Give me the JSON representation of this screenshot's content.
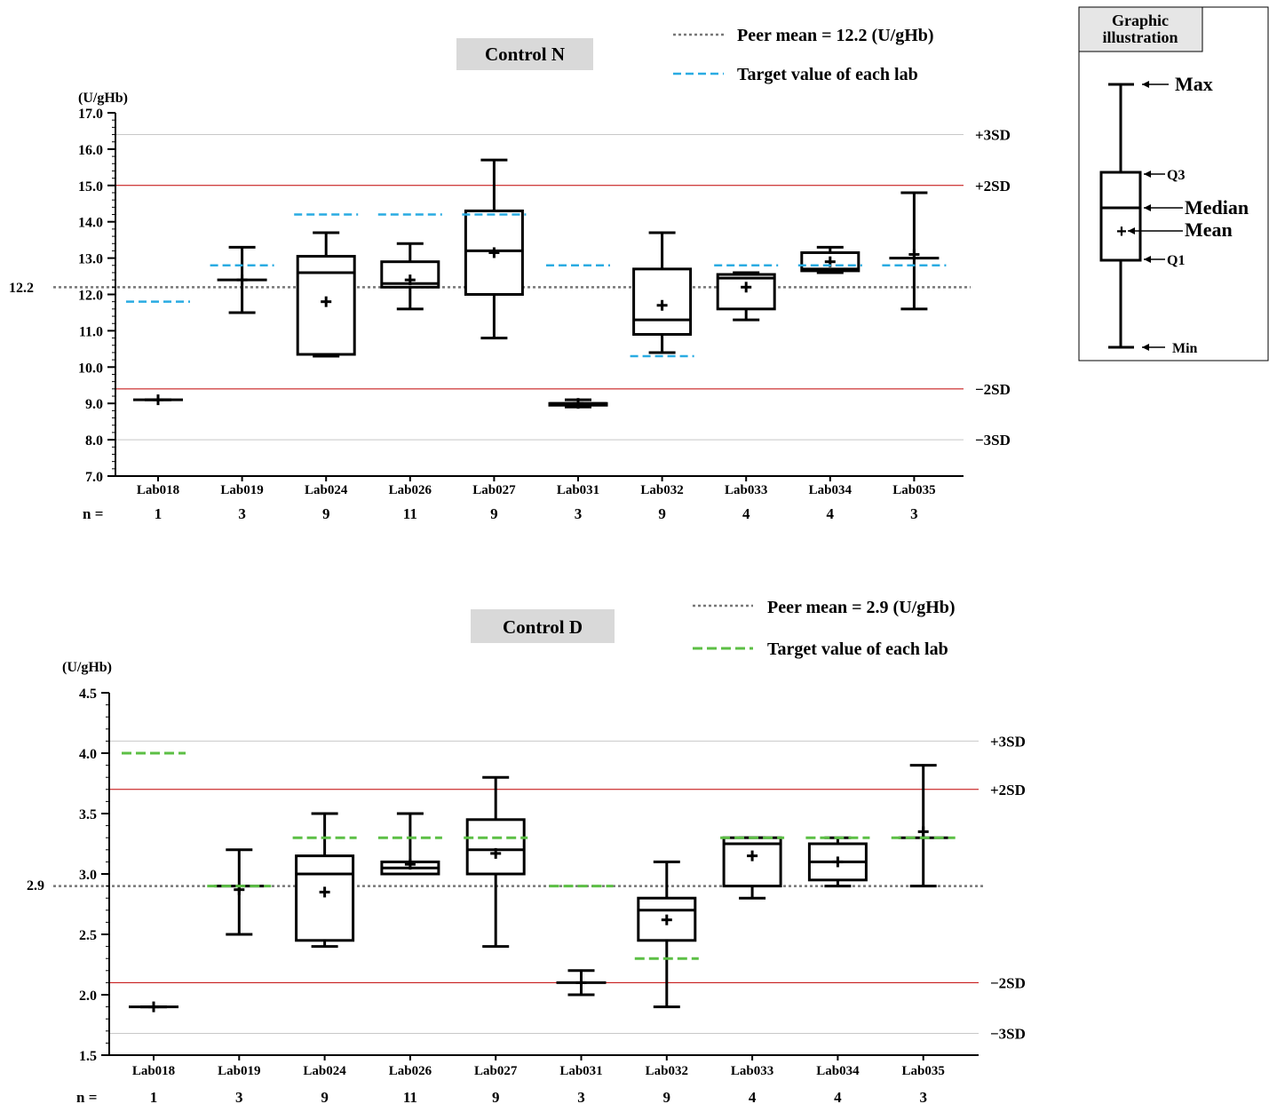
{
  "chart_data": [
    {
      "type": "box",
      "title": "Control N",
      "unit": "(U/gHb)",
      "ylim": [
        7.0,
        17.0
      ],
      "yticks": [
        "7.0",
        "8.0",
        "9.0",
        "10.0",
        "11.0",
        "12.0",
        "13.0",
        "14.0",
        "15.0",
        "16.0",
        "17.0"
      ],
      "peer_mean": 12.2,
      "peer_mean_label": "12.2",
      "legend": {
        "peer_mean": "Peer mean = 12.2 (U/gHb)",
        "target": "Target value of each lab"
      },
      "target_color": "#29abe2",
      "ref_lines": [
        {
          "label": "+3SD",
          "value": 16.4,
          "color": "#c8c8c8"
        },
        {
          "label": "+2SD",
          "value": 15.0,
          "color": "#c00000"
        },
        {
          "label": "−2SD",
          "value": 9.4,
          "color": "#c00000"
        },
        {
          "label": "−3SD",
          "value": 8.0,
          "color": "#c8c8c8"
        }
      ],
      "n_label": "n =",
      "categories": [
        "Lab018",
        "Lab019",
        "Lab024",
        "Lab026",
        "Lab027",
        "Lab031",
        "Lab032",
        "Lab033",
        "Lab034",
        "Lab035"
      ],
      "n": [
        "1",
        "3",
        "9",
        "11",
        "9",
        "3",
        "9",
        "4",
        "4",
        "3"
      ],
      "boxes": [
        {
          "min": 9.1,
          "q1": 9.1,
          "median": 9.1,
          "q3": 9.1,
          "max": 9.1,
          "mean": 9.1,
          "target": 11.8
        },
        {
          "min": 11.5,
          "q1": 12.4,
          "median": 12.4,
          "q3": 12.4,
          "max": 13.3,
          "mean": 12.4,
          "target": 12.8
        },
        {
          "min": 10.3,
          "q1": 10.35,
          "median": 12.6,
          "q3": 13.05,
          "max": 13.7,
          "mean": 11.8,
          "target": 14.2
        },
        {
          "min": 11.6,
          "q1": 12.2,
          "median": 12.3,
          "q3": 12.9,
          "max": 13.4,
          "mean": 12.4,
          "target": 14.2
        },
        {
          "min": 10.8,
          "q1": 12.0,
          "median": 13.2,
          "q3": 14.3,
          "max": 15.7,
          "mean": 13.15,
          "target": 14.2
        },
        {
          "min": 8.9,
          "q1": 8.95,
          "median": 9.0,
          "q3": 9.0,
          "max": 9.1,
          "mean": 9.0,
          "target": 12.8
        },
        {
          "min": 10.4,
          "q1": 10.9,
          "median": 11.3,
          "q3": 12.7,
          "max": 13.7,
          "mean": 11.7,
          "target": 10.3
        },
        {
          "min": 11.3,
          "q1": 11.6,
          "median": 12.45,
          "q3": 12.55,
          "max": 12.6,
          "mean": 12.2,
          "target": 12.8
        },
        {
          "min": 12.6,
          "q1": 12.65,
          "median": 12.7,
          "q3": 13.15,
          "max": 13.3,
          "mean": 12.9,
          "target": 12.8
        },
        {
          "min": 11.6,
          "q1": 13.0,
          "median": 13.0,
          "q3": 13.0,
          "max": 14.8,
          "mean": 13.1,
          "target": 12.8
        }
      ]
    },
    {
      "type": "box",
      "title": "Control D",
      "unit": "(U/gHb)",
      "ylim": [
        1.5,
        4.5
      ],
      "yticks": [
        "1.5",
        "2.0",
        "2.5",
        "3.0",
        "3.5",
        "4.0",
        "4.5"
      ],
      "peer_mean": 2.9,
      "peer_mean_label": "2.9",
      "legend": {
        "peer_mean": "Peer mean = 2.9 (U/gHb)",
        "target": "Target value of each lab"
      },
      "target_color": "#5cbf45",
      "ref_lines": [
        {
          "label": "+3SD",
          "value": 4.1,
          "color": "#c8c8c8"
        },
        {
          "label": "+2SD",
          "value": 3.7,
          "color": "#c00000"
        },
        {
          "label": "−2SD",
          "value": 2.1,
          "color": "#c00000"
        },
        {
          "label": "−3SD",
          "value": 1.68,
          "color": "#c8c8c8"
        }
      ],
      "n_label": "n =",
      "categories": [
        "Lab018",
        "Lab019",
        "Lab024",
        "Lab026",
        "Lab027",
        "Lab031",
        "Lab032",
        "Lab033",
        "Lab034",
        "Lab035"
      ],
      "n": [
        "1",
        "3",
        "9",
        "11",
        "9",
        "3",
        "9",
        "4",
        "4",
        "3"
      ],
      "boxes": [
        {
          "min": 1.9,
          "q1": 1.9,
          "median": 1.9,
          "q3": 1.9,
          "max": 1.9,
          "mean": 1.9,
          "target": 4.0
        },
        {
          "min": 2.5,
          "q1": 2.9,
          "median": 2.9,
          "q3": 2.9,
          "max": 3.2,
          "mean": 2.87,
          "target": 2.9
        },
        {
          "min": 2.4,
          "q1": 2.45,
          "median": 3.0,
          "q3": 3.15,
          "max": 3.5,
          "mean": 2.85,
          "target": 3.3
        },
        {
          "min": 3.0,
          "q1": 3.0,
          "median": 3.05,
          "q3": 3.1,
          "max": 3.5,
          "mean": 3.08,
          "target": 3.3
        },
        {
          "min": 2.4,
          "q1": 3.0,
          "median": 3.2,
          "q3": 3.45,
          "max": 3.8,
          "mean": 3.17,
          "target": 3.3
        },
        {
          "min": 2.0,
          "q1": 2.1,
          "median": 2.1,
          "q3": 2.1,
          "max": 2.2,
          "mean": 2.1,
          "target": 2.9
        },
        {
          "min": 1.9,
          "q1": 2.45,
          "median": 2.7,
          "q3": 2.8,
          "max": 3.1,
          "mean": 2.62,
          "target": 2.3
        },
        {
          "min": 2.8,
          "q1": 2.9,
          "median": 3.25,
          "q3": 3.3,
          "max": 3.3,
          "mean": 3.15,
          "target": 3.3
        },
        {
          "min": 2.9,
          "q1": 2.95,
          "median": 3.1,
          "q3": 3.25,
          "max": 3.3,
          "mean": 3.1,
          "target": 3.3
        },
        {
          "min": 2.9,
          "q1": 3.3,
          "median": 3.3,
          "q3": 3.3,
          "max": 3.9,
          "mean": 3.35,
          "target": 3.3
        }
      ]
    }
  ],
  "graphic_illustration": {
    "title_line1": "Graphic",
    "title_line2": "illustration",
    "max": "Max",
    "q3": "Q3",
    "median": "Median",
    "mean": "Mean",
    "q1": "Q1",
    "min": "Min"
  }
}
